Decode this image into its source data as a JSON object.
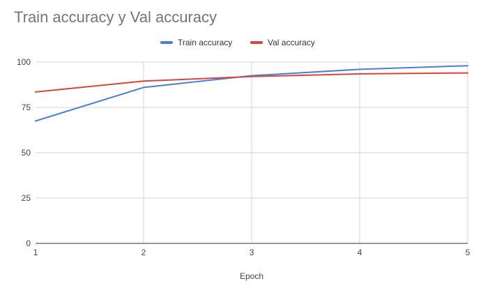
{
  "chart_data": {
    "type": "line",
    "title": "Train accuracy y Val accuracy",
    "xlabel": "Epoch",
    "ylabel": "",
    "x": [
      1,
      2,
      3,
      4,
      5
    ],
    "xlim": [
      1,
      5
    ],
    "ylim": [
      0,
      100
    ],
    "yticks": [
      0,
      25,
      50,
      75,
      100
    ],
    "grid": true,
    "legend_position": "top",
    "series": [
      {
        "name": "Train accuracy",
        "color": "#4a7fd9",
        "values": [
          67.5,
          86,
          92.5,
          96,
          98
        ]
      },
      {
        "name": "Val accuracy",
        "color": "#db4437",
        "values": [
          83.5,
          89.5,
          92,
          93.5,
          94
        ]
      }
    ]
  }
}
